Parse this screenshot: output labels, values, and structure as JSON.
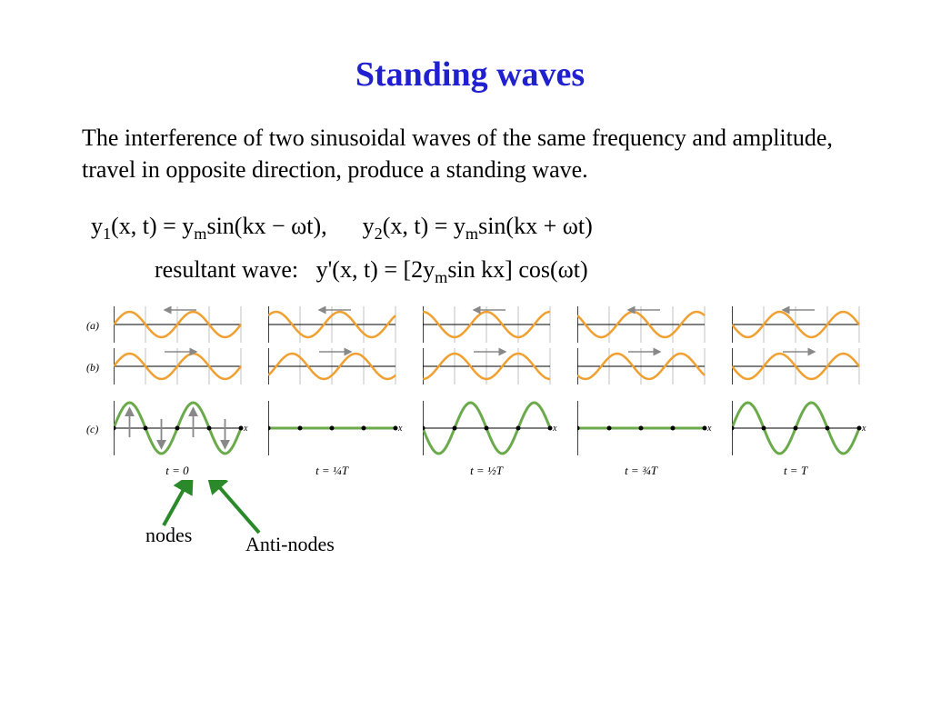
{
  "title": "Standing waves",
  "title_color": "#2020d0",
  "description": "The interference of two sinusoidal waves of the same frequency and amplitude, travel in opposite direction, produce a standing wave.",
  "eq1_left": "y₁(x, t) = yₘsin(kx − ωt),",
  "eq1_right": "y₂(x, t) = yₘsin(kx + ωt)",
  "eq2_label": "resultant wave:",
  "eq2_value": "y'(x, t) = [2yₘsin kx] cos(ωt)",
  "row_labels": [
    "(a)",
    "(b)",
    "(c)"
  ],
  "axis_label": "x",
  "time_labels": [
    "t = 0",
    "t = ¼T",
    "t = ½T",
    "t = ¾T",
    "t = T"
  ],
  "nodes_label": "nodes",
  "antinodes_label": "Anti-nodes",
  "colors": {
    "wave_a": "#f0a030",
    "wave_b": "#f0a030",
    "wave_c": "#6aaa4a",
    "axis": "#000000",
    "grid": "#999999",
    "arrow": "#888888",
    "annotation_arrow": "#2a8a2a"
  },
  "panel": {
    "width": 140,
    "sub_height": 40,
    "sub_c_height": 60
  },
  "wave": {
    "n_wavelengths": 2,
    "amplitude": 14,
    "line_width": 2.5
  },
  "phases": {
    "a": [
      0,
      0.785,
      1.571,
      2.356,
      3.142
    ],
    "b": [
      0,
      -0.785,
      -1.571,
      -2.356,
      -3.142
    ],
    "c_cos": [
      1.0,
      0.0,
      -1.0,
      0.0,
      1.0
    ]
  },
  "arrows": {
    "a_dir": "left",
    "b_dir": "right"
  },
  "panel0_extras": {
    "node_dots": [
      0,
      35,
      70,
      105,
      140
    ],
    "antinode_arrows": [
      {
        "x": 17.5,
        "dir": "up"
      },
      {
        "x": 52.5,
        "dir": "down"
      },
      {
        "x": 87.5,
        "dir": "up"
      },
      {
        "x": 122.5,
        "dir": "down"
      }
    ]
  }
}
